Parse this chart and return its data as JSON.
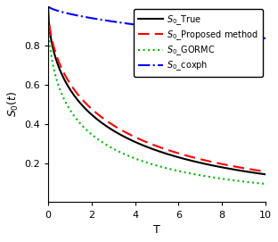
{
  "title": "",
  "xlabel": "T",
  "ylabel": "$S_0(t)$",
  "xlim": [
    0,
    10
  ],
  "ylim": [
    0.0,
    1.0
  ],
  "xticks": [
    0,
    2,
    4,
    6,
    8,
    10
  ],
  "yticks": [
    0.2,
    0.4,
    0.6,
    0.8
  ],
  "curves": {
    "true": {
      "lam": 0.55,
      "k": 0.55
    },
    "proposed": {
      "lam": 0.5,
      "k": 0.57
    },
    "gormc": {
      "lam": 0.75,
      "k": 0.5
    },
    "coxph": {
      "lam": 0.04,
      "k": 0.65
    }
  },
  "legend_labels": [
    "$S_0$_True",
    "$S_0$_Proposed method",
    "$S_0$_GORMC",
    "$S_0$_coxph"
  ],
  "colors": [
    "#000000",
    "#FF0000",
    "#00BB00",
    "#0000FF"
  ],
  "linestyles": [
    "solid",
    "dashed",
    "dotted",
    "dashdot"
  ],
  "linewidths": [
    1.5,
    1.5,
    1.5,
    1.5
  ],
  "background_color": "#ffffff",
  "legend_fontsize": 7.0,
  "axis_fontsize": 9,
  "tick_fontsize": 8
}
